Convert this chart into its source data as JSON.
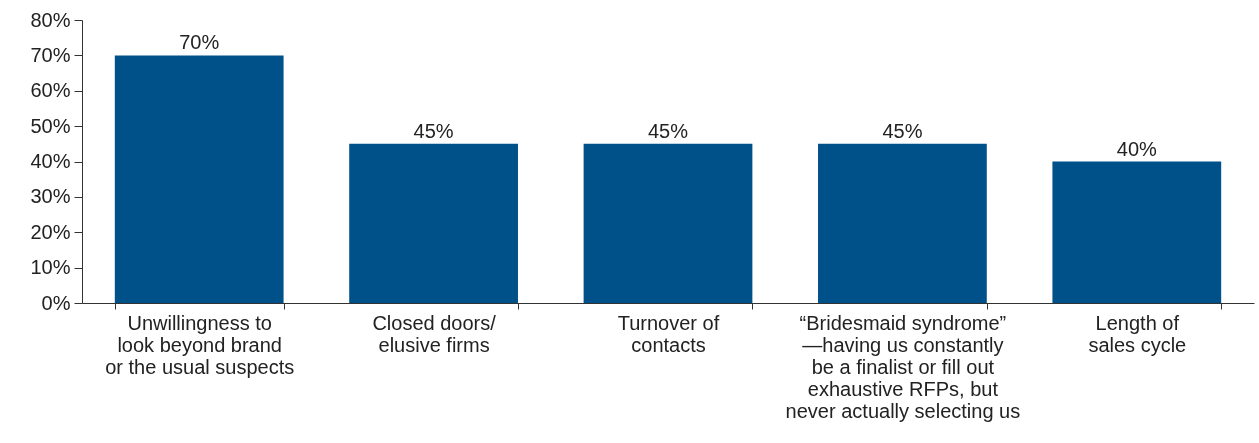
{
  "chart_data": {
    "type": "bar",
    "categories": [
      "Unwillingness to\nlook beyond brand\nor the usual suspects",
      "Closed doors/\nelusive firms",
      "Turnover of\ncontacts",
      "“Bridesmaid syndrome”\n—having us constantly\nbe a finalist or fill out\nexhaustive RFPs, but\nnever actually selecting us",
      "Length of\nsales cycle"
    ],
    "values": [
      70,
      45,
      45,
      45,
      40
    ],
    "value_labels": [
      "70%",
      "45%",
      "45%",
      "45%",
      "40%"
    ],
    "color": "#00518a",
    "ylim": [
      0,
      80
    ],
    "yticks": [
      {
        "value": 0,
        "label": "0%"
      },
      {
        "value": 10,
        "label": "10%"
      },
      {
        "value": 20,
        "label": "20%"
      },
      {
        "value": 30,
        "label": "30%"
      },
      {
        "value": 40,
        "label": "40%"
      },
      {
        "value": 50,
        "label": "50%"
      },
      {
        "value": 60,
        "label": "60%"
      },
      {
        "value": 70,
        "label": "70%"
      },
      {
        "value": 80,
        "label": "80%"
      }
    ],
    "grid": false
  }
}
